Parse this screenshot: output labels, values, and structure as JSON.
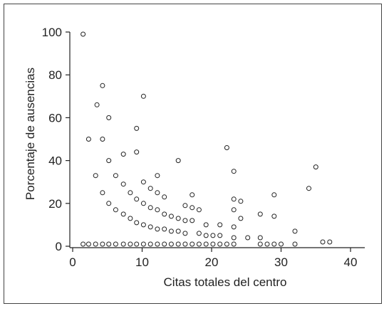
{
  "chart_data": {
    "type": "scatter",
    "title": "",
    "xlabel": "Citas totales del centro",
    "ylabel": "Porcentaje de ausencias",
    "xlim": [
      0,
      42
    ],
    "ylim": [
      0,
      100
    ],
    "xticks": [
      0,
      10,
      20,
      30,
      40
    ],
    "yticks": [
      0,
      20,
      40,
      60,
      80,
      100
    ],
    "grid": false,
    "legend": "none",
    "marker": "open-circle",
    "color": "#222222",
    "points": [
      [
        1.5,
        99
      ],
      [
        1.5,
        1
      ],
      [
        2.3,
        50
      ],
      [
        2.3,
        1
      ],
      [
        3.3,
        33
      ],
      [
        3.5,
        66
      ],
      [
        3.3,
        1
      ],
      [
        4.3,
        75
      ],
      [
        4.3,
        50
      ],
      [
        4.3,
        25
      ],
      [
        4.3,
        1
      ],
      [
        5.2,
        60
      ],
      [
        5.2,
        40
      ],
      [
        5.2,
        20
      ],
      [
        5.2,
        1
      ],
      [
        6.2,
        33
      ],
      [
        6.2,
        17
      ],
      [
        6.2,
        1
      ],
      [
        7.3,
        43
      ],
      [
        7.3,
        29
      ],
      [
        7.3,
        15
      ],
      [
        7.3,
        1
      ],
      [
        8.3,
        25
      ],
      [
        8.3,
        13
      ],
      [
        8.3,
        1
      ],
      [
        9.2,
        55
      ],
      [
        9.2,
        44
      ],
      [
        9.2,
        22
      ],
      [
        9.2,
        11
      ],
      [
        9.2,
        1
      ],
      [
        10.2,
        70
      ],
      [
        10.2,
        30
      ],
      [
        10.2,
        20
      ],
      [
        10.2,
        10
      ],
      [
        10.2,
        1
      ],
      [
        11.2,
        27
      ],
      [
        11.2,
        18
      ],
      [
        11.2,
        9
      ],
      [
        11.2,
        1
      ],
      [
        12.2,
        33
      ],
      [
        12.2,
        25
      ],
      [
        12.2,
        17
      ],
      [
        12.2,
        8
      ],
      [
        12.2,
        1
      ],
      [
        13.2,
        23
      ],
      [
        13.2,
        15
      ],
      [
        13.2,
        8
      ],
      [
        13.2,
        1
      ],
      [
        14.2,
        14
      ],
      [
        14.2,
        7
      ],
      [
        14.2,
        1
      ],
      [
        15.2,
        40
      ],
      [
        15.2,
        13
      ],
      [
        15.2,
        7
      ],
      [
        15.2,
        1
      ],
      [
        16.2,
        19
      ],
      [
        16.2,
        12
      ],
      [
        16.2,
        6
      ],
      [
        16.2,
        1
      ],
      [
        17.2,
        24
      ],
      [
        17.2,
        18
      ],
      [
        17.2,
        12
      ],
      [
        17.2,
        1
      ],
      [
        18.2,
        17
      ],
      [
        18.2,
        6
      ],
      [
        18.2,
        1
      ],
      [
        19.2,
        10
      ],
      [
        19.2,
        5
      ],
      [
        19.2,
        1
      ],
      [
        20.2,
        5
      ],
      [
        20.2,
        1
      ],
      [
        21.2,
        10
      ],
      [
        21.2,
        5
      ],
      [
        21.2,
        1
      ],
      [
        22.2,
        46
      ],
      [
        22.2,
        1
      ],
      [
        23.2,
        35
      ],
      [
        23.2,
        22
      ],
      [
        23.2,
        17
      ],
      [
        23.2,
        9
      ],
      [
        23.2,
        4
      ],
      [
        23.2,
        1
      ],
      [
        24.2,
        21
      ],
      [
        24.2,
        13
      ],
      [
        25.2,
        4
      ],
      [
        27.0,
        15
      ],
      [
        27.0,
        4
      ],
      [
        27.0,
        1
      ],
      [
        28.0,
        1
      ],
      [
        29.0,
        24
      ],
      [
        29.0,
        14
      ],
      [
        29.0,
        1
      ],
      [
        30.0,
        1
      ],
      [
        32.0,
        7
      ],
      [
        32.0,
        1
      ],
      [
        34.0,
        27
      ],
      [
        35.0,
        37
      ],
      [
        36.0,
        2
      ],
      [
        37.0,
        2
      ]
    ]
  }
}
